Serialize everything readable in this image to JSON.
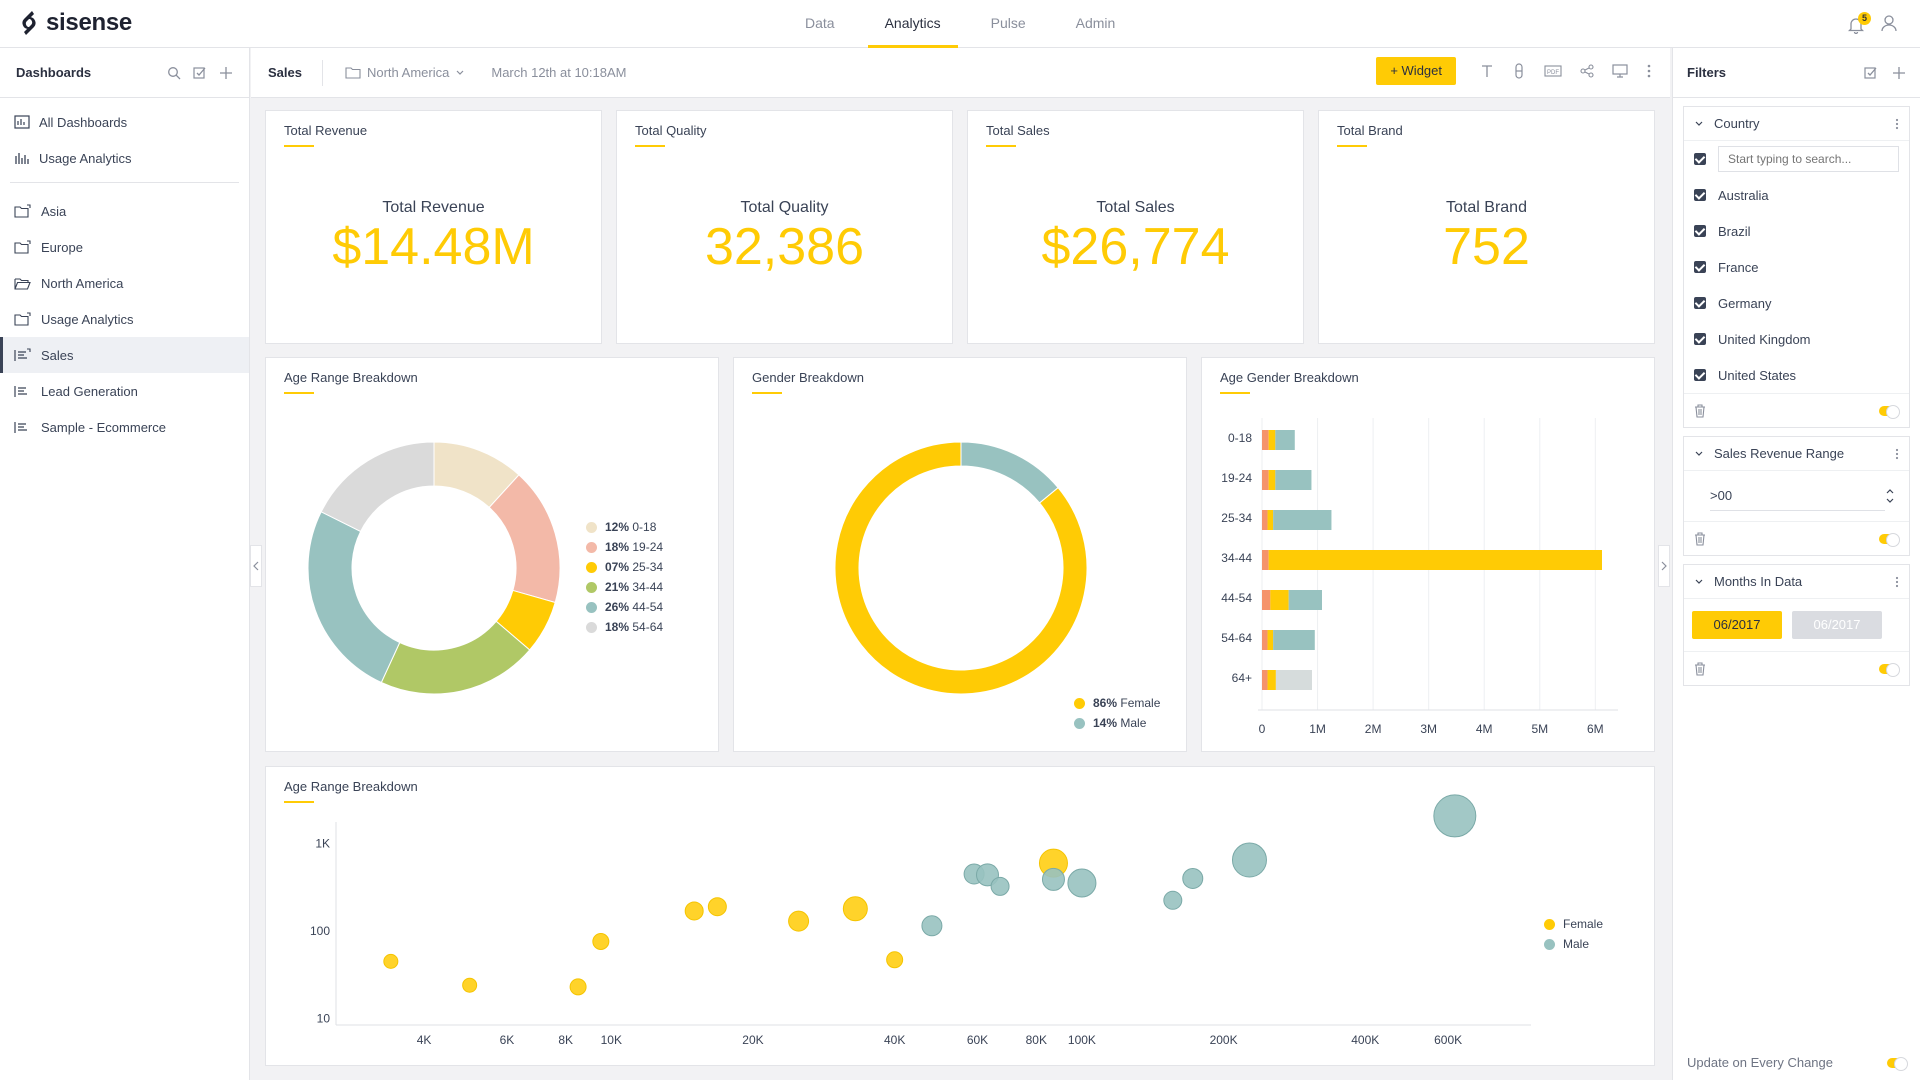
{
  "app": {
    "name": "sisense",
    "notification_count": "5"
  },
  "topnav": [
    {
      "label": "Data",
      "active": false
    },
    {
      "label": "Analytics",
      "active": true
    },
    {
      "label": "Pulse",
      "active": false
    },
    {
      "label": "Admin",
      "active": false
    }
  ],
  "left_panel": {
    "title": "Dashboards",
    "top_items": [
      "All Dashboards",
      "Usage Analytics"
    ],
    "folders": [
      "Asia",
      "Europe",
      "North America",
      "Usage Analytics"
    ],
    "dashboards": [
      "Sales",
      "Lead Generation",
      "Sample - Ecommerce"
    ],
    "active": "Sales"
  },
  "toolbar": {
    "dashboard": "Sales",
    "folder": "North America",
    "date": "March 12th at 10:18AM",
    "widget_button": "Widget"
  },
  "kpis": [
    {
      "title": "Total Revenue",
      "label": "Total Revenue",
      "value": "$14.48M"
    },
    {
      "title": "Total Quality",
      "label": "Total Quality",
      "value": "32,386"
    },
    {
      "title": "Total Sales",
      "label": "Total Sales",
      "value": "$26,774"
    },
    {
      "title": "Total Brand",
      "label": "Total Brand",
      "value": "752"
    }
  ],
  "colors": {
    "accent": "#ffcb05",
    "age": [
      "#f0e3c8",
      "#f3b9a8",
      "#ffcb05",
      "#b0c866",
      "#98c2c0",
      "#dadada"
    ],
    "female": "#ffcb05",
    "male": "#98c2c0",
    "bar_small": "#f5936b",
    "bar_mid": "#ffcb05"
  },
  "chart_data": [
    {
      "type": "pie",
      "title": "Age Range Breakdown",
      "categories": [
        "0-18",
        "19-24",
        "25-34",
        "34-44",
        "44-54",
        "54-64"
      ],
      "values": [
        12,
        18,
        7,
        21,
        26,
        18
      ],
      "labels": [
        "12%",
        "18%",
        "07%",
        "21%",
        "26%",
        "18%"
      ]
    },
    {
      "type": "pie",
      "title": "Gender Breakdown",
      "categories": [
        "Female",
        "Male"
      ],
      "values": [
        86,
        14
      ],
      "labels": [
        "86%",
        "14%"
      ]
    },
    {
      "type": "bar",
      "title": "Age Gender Breakdown",
      "orientation": "horizontal",
      "stacked": true,
      "categories": [
        "0-18",
        "19-24",
        "25-34",
        "34-44",
        "44-54",
        "54-64",
        "64+"
      ],
      "series": [
        {
          "values": [
            0.12,
            0.12,
            0.1,
            0.12,
            0.15,
            0.1,
            0.1
          ]
        },
        {
          "values": [
            0.12,
            0.12,
            0.1,
            6.0,
            0.33,
            0.1,
            0.15
          ]
        },
        {
          "values": [
            0.35,
            0.65,
            1.05,
            0,
            0.6,
            0.75,
            0.65
          ]
        }
      ],
      "x_ticks": [
        "0",
        "1M",
        "2M",
        "3M",
        "4M",
        "5M",
        "6M"
      ],
      "xlim": [
        0,
        6.3
      ]
    },
    {
      "type": "scatter",
      "title": "Age Range Breakdown",
      "x_scale": "log",
      "y_scale": "log",
      "xlim": [
        2600,
        900000
      ],
      "ylim": [
        7,
        3000
      ],
      "x_ticks": [
        {
          "v": 4000,
          "label": "4K"
        },
        {
          "v": 6000,
          "label": "6K"
        },
        {
          "v": 8000,
          "label": "8K"
        },
        {
          "v": 10000,
          "label": "10K"
        },
        {
          "v": 20000,
          "label": "20K"
        },
        {
          "v": 40000,
          "label": "40K"
        },
        {
          "v": 60000,
          "label": "60K"
        },
        {
          "v": 80000,
          "label": "80K"
        },
        {
          "v": 100000,
          "label": "100K"
        },
        {
          "v": 200000,
          "label": "200K"
        },
        {
          "v": 400000,
          "label": "400K"
        },
        {
          "v": 600000,
          "label": "600K"
        }
      ],
      "y_ticks": [
        {
          "v": 10,
          "label": "10"
        },
        {
          "v": 100,
          "label": "100"
        },
        {
          "v": 1000,
          "label": "1K"
        }
      ],
      "series": [
        {
          "name": "Female",
          "points": [
            {
              "x": 3400,
              "y": 45,
              "r": 7
            },
            {
              "x": 5000,
              "y": 24,
              "r": 7
            },
            {
              "x": 8500,
              "y": 23,
              "r": 8
            },
            {
              "x": 9500,
              "y": 76,
              "r": 8
            },
            {
              "x": 15000,
              "y": 170,
              "r": 9
            },
            {
              "x": 16800,
              "y": 190,
              "r": 9
            },
            {
              "x": 25000,
              "y": 130,
              "r": 10
            },
            {
              "x": 33000,
              "y": 180,
              "r": 12
            },
            {
              "x": 40000,
              "y": 47,
              "r": 8
            },
            {
              "x": 87000,
              "y": 600,
              "r": 14
            }
          ]
        },
        {
          "name": "Male",
          "points": [
            {
              "x": 48000,
              "y": 115,
              "r": 10
            },
            {
              "x": 59000,
              "y": 450,
              "r": 10
            },
            {
              "x": 63000,
              "y": 440,
              "r": 11
            },
            {
              "x": 67000,
              "y": 325,
              "r": 9
            },
            {
              "x": 87000,
              "y": 390,
              "r": 11
            },
            {
              "x": 100000,
              "y": 355,
              "r": 14
            },
            {
              "x": 156000,
              "y": 225,
              "r": 9
            },
            {
              "x": 172000,
              "y": 400,
              "r": 10
            },
            {
              "x": 227000,
              "y": 650,
              "r": 17
            },
            {
              "x": 620000,
              "y": 2080,
              "r": 21
            }
          ]
        }
      ]
    }
  ],
  "filters": {
    "title": "Filters",
    "country": {
      "name": "Country",
      "search_placeholder": "Start typing to search...",
      "options": [
        "Australia",
        "Brazil",
        "France",
        "Germany",
        "United Kingdom",
        "United States"
      ]
    },
    "revenue": {
      "name": "Sales Revenue Range",
      "value": ">00"
    },
    "months": {
      "name": "Months In Data",
      "from": "06/2017",
      "to": "06/2017"
    },
    "update_label": "Update on Every Change"
  }
}
